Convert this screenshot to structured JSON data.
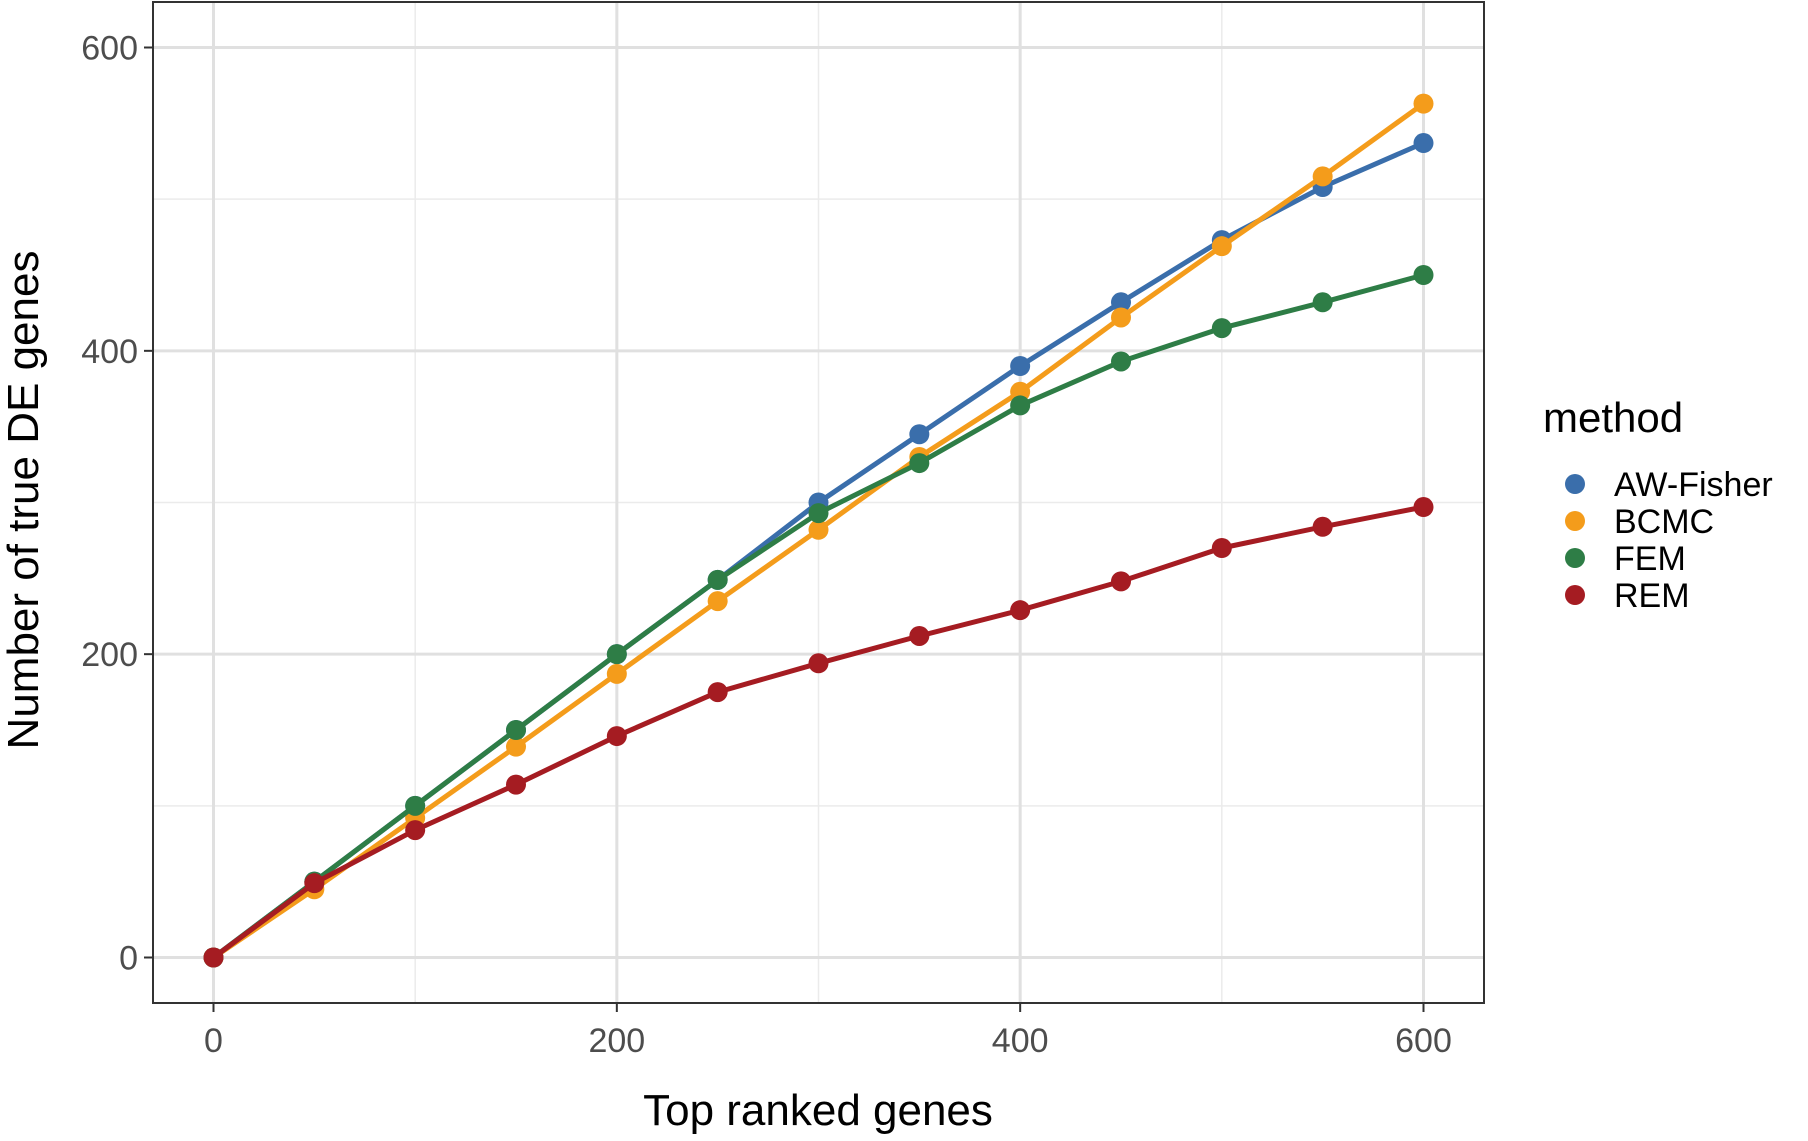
{
  "chart_data": {
    "type": "line",
    "title": "",
    "xlabel": "Top ranked genes",
    "ylabel": "Number of true DE genes",
    "xlim": [
      -30,
      630
    ],
    "ylim": [
      -30,
      630
    ],
    "x_ticks": [
      0,
      200,
      400,
      600
    ],
    "y_ticks": [
      0,
      200,
      400,
      600
    ],
    "x_minor_ticks": [
      100,
      300,
      500
    ],
    "y_minor_ticks": [
      100,
      300,
      500
    ],
    "grid": true,
    "markers": true,
    "legend": {
      "title": "method",
      "position": "right"
    },
    "x": [
      0,
      50,
      100,
      150,
      200,
      250,
      300,
      350,
      400,
      450,
      500,
      550,
      600
    ],
    "series": [
      {
        "name": "AW-Fisher",
        "color": "#3a6eab",
        "values": [
          0,
          50,
          100,
          150,
          200,
          249,
          300,
          345,
          390,
          432,
          473,
          508,
          537
        ]
      },
      {
        "name": "BCMC",
        "color": "#f49c1b",
        "values": [
          0,
          45,
          92,
          139,
          187,
          235,
          282,
          330,
          373,
          422,
          469,
          515,
          563
        ]
      },
      {
        "name": "FEM",
        "color": "#2e7d46",
        "values": [
          0,
          50,
          100,
          150,
          200,
          249,
          293,
          326,
          364,
          393,
          415,
          432,
          450
        ]
      },
      {
        "name": "REM",
        "color": "#a51c22",
        "values": [
          0,
          49,
          84,
          114,
          146,
          175,
          194,
          212,
          229,
          248,
          270,
          284,
          297
        ]
      }
    ]
  }
}
